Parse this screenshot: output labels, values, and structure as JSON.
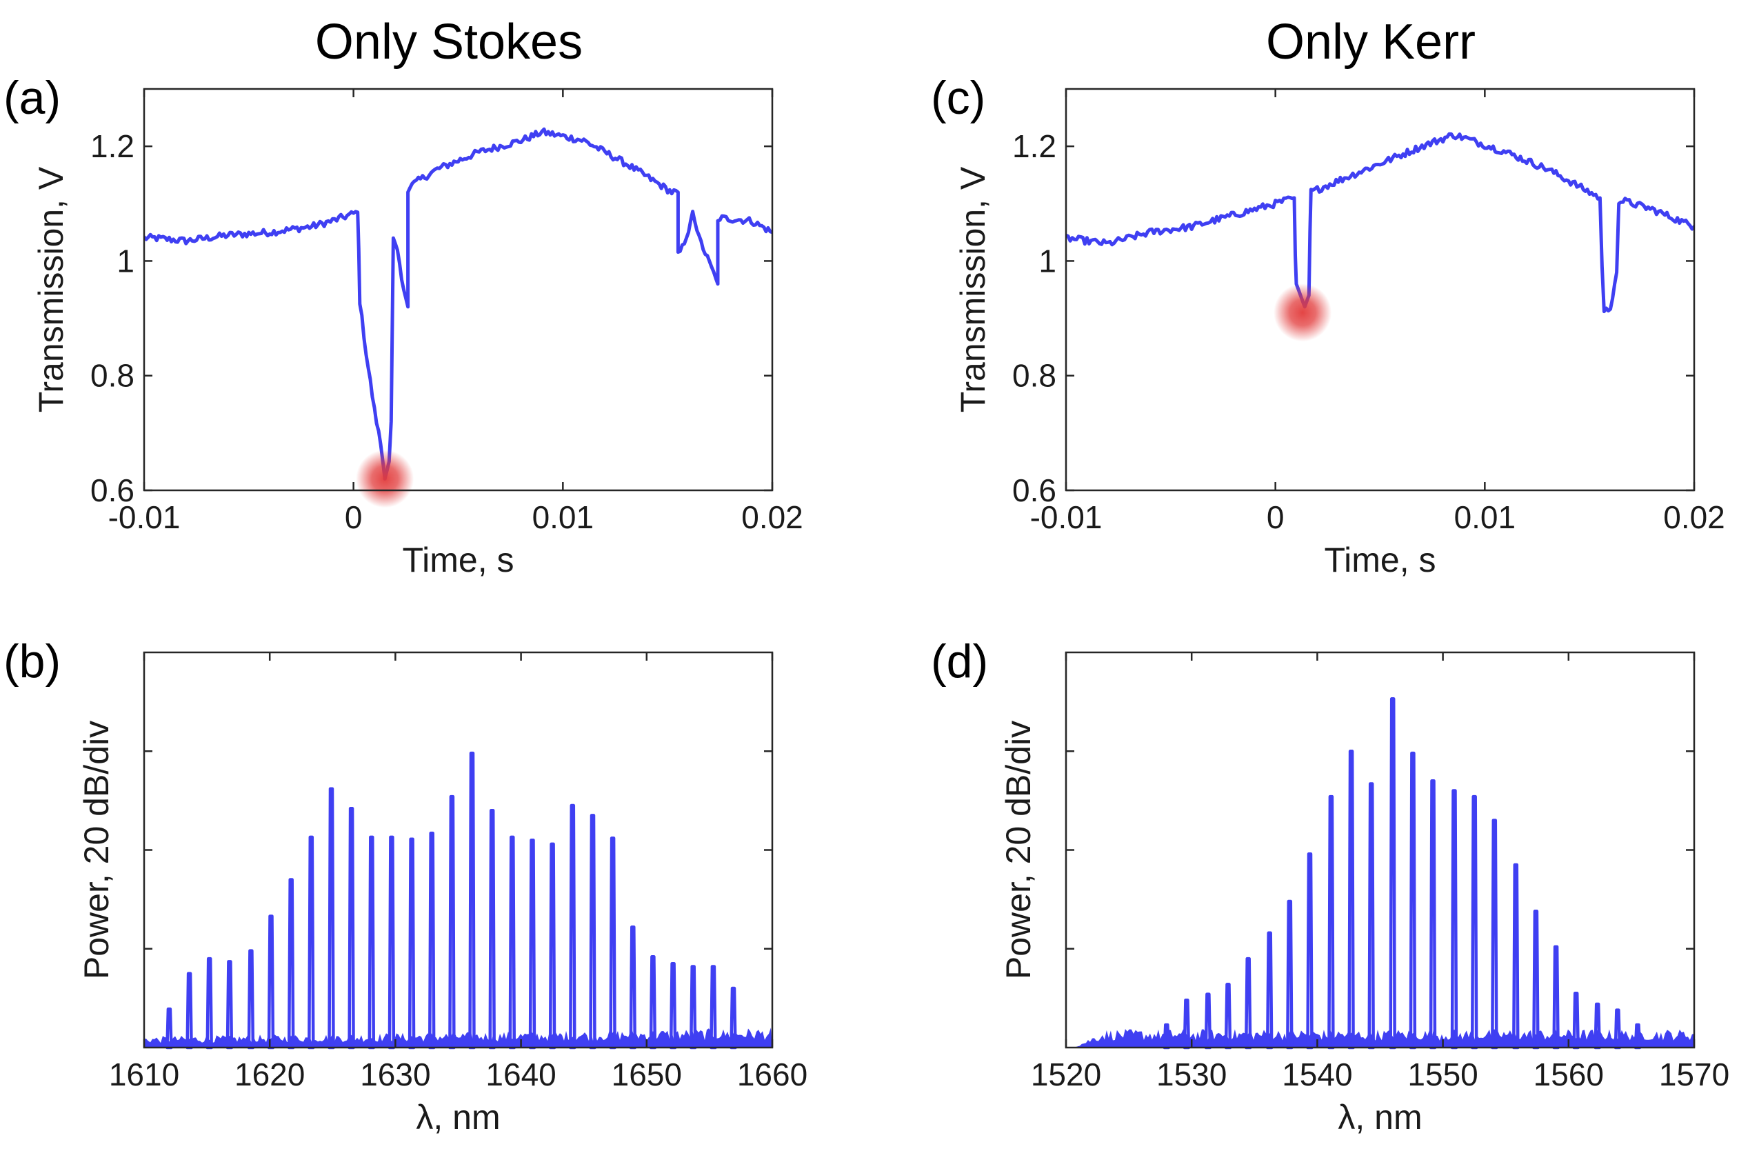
{
  "titles": {
    "left": "Only Stokes",
    "right": "Only Kerr"
  },
  "colors": {
    "trace": "#3f3ff2",
    "highlight": "#e23b3b"
  },
  "chart_data": [
    {
      "id": "a",
      "label": "(a)",
      "type": "line",
      "xlabel": "Time, s",
      "ylabel": "Transmission, V",
      "xlim": [
        -0.01,
        0.02
      ],
      "ylim": [
        0.6,
        1.3
      ],
      "xticks": [
        -0.01,
        0,
        0.01,
        0.02
      ],
      "xtick_labels": [
        "-0.01",
        "0",
        "0.01",
        "0.02"
      ],
      "yticks": [
        0.6,
        0.8,
        1.0,
        1.2
      ],
      "ytick_labels": [
        "0.6",
        "0.8",
        "1",
        "1.2"
      ],
      "grid": false,
      "series": [
        {
          "x": [
            -0.01,
            -0.0095,
            -0.008,
            -0.006,
            -0.004,
            -0.002,
            -0.001,
            0.0002,
            0.00025,
            0.0003,
            0.0006,
            0.001,
            0.0013,
            0.0015,
            0.0017,
            0.0018,
            0.0019,
            0.0021,
            0.0024,
            0.0026,
            0.0026,
            0.0027,
            0.0031,
            0.004,
            0.006,
            0.008,
            0.0087,
            0.009,
            0.011,
            0.013,
            0.0152,
            0.0155,
            0.0155,
            0.0158,
            0.016,
            0.0162,
            0.0165,
            0.0173,
            0.0174,
            0.0174,
            0.0175,
            0.019,
            0.02
          ],
          "y": [
            1.04,
            1.04,
            1.035,
            1.045,
            1.05,
            1.06,
            1.07,
            1.085,
            1.02,
            0.93,
            0.84,
            0.74,
            0.68,
            0.62,
            0.65,
            0.72,
            1.04,
            1.02,
            0.95,
            0.92,
            1.12,
            1.13,
            1.14,
            1.16,
            1.19,
            1.21,
            1.22,
            1.225,
            1.21,
            1.17,
            1.12,
            1.12,
            1.01,
            1.03,
            1.05,
            1.09,
            1.04,
            0.97,
            0.96,
            1.07,
            1.075,
            1.07,
            1.05
          ]
        }
      ],
      "annotations": [
        {
          "type": "highlight",
          "x": 0.0015,
          "y": 0.62
        }
      ]
    },
    {
      "id": "b",
      "label": "(b)",
      "type": "bar",
      "xlabel": "λ, nm",
      "ylabel": "Power, 20 dB/div",
      "xlim": [
        1610,
        1660
      ],
      "xticks": [
        1610,
        1620,
        1630,
        1640,
        1650,
        1660
      ],
      "xtick_labels": [
        "1610",
        "1620",
        "1630",
        "1640",
        "1650",
        "1660"
      ],
      "yticks_count": 4,
      "ylim_div": [
        0,
        4
      ],
      "noise_floor_div": 0.1,
      "grid": false,
      "lines_x": [
        1612.0,
        1613.6,
        1615.2,
        1616.8,
        1618.5,
        1620.1,
        1621.7,
        1623.3,
        1624.9,
        1626.5,
        1628.1,
        1629.7,
        1631.3,
        1632.9,
        1634.5,
        1636.1,
        1637.7,
        1639.3,
        1640.9,
        1642.5,
        1644.1,
        1645.7,
        1647.3,
        1648.9,
        1650.5,
        1652.1,
        1653.7,
        1655.3,
        1656.9
      ],
      "lines_div": [
        0.39,
        0.75,
        0.9,
        0.87,
        0.98,
        1.33,
        1.7,
        2.13,
        2.62,
        2.42,
        2.13,
        2.13,
        2.11,
        2.17,
        2.54,
        2.98,
        2.4,
        2.13,
        2.1,
        2.06,
        2.45,
        2.35,
        2.12,
        1.22,
        0.92,
        0.85,
        0.82,
        0.82,
        0.6
      ]
    },
    {
      "id": "c",
      "label": "(c)",
      "type": "line",
      "xlabel": "Time, s",
      "ylabel": "Transmission, V",
      "xlim": [
        -0.01,
        0.02
      ],
      "ylim": [
        0.6,
        1.3
      ],
      "xticks": [
        -0.01,
        0,
        0.01,
        0.02
      ],
      "xtick_labels": [
        "-0.01",
        "0",
        "0.01",
        "0.02"
      ],
      "yticks": [
        0.6,
        0.8,
        1.0,
        1.2
      ],
      "ytick_labels": [
        "0.6",
        "0.8",
        "1",
        "1.2"
      ],
      "grid": false,
      "series": [
        {
          "x": [
            -0.01,
            -0.008,
            -0.006,
            -0.004,
            -0.002,
            0.0,
            0.0009,
            0.00095,
            0.001,
            0.0012,
            0.0014,
            0.0016,
            0.00165,
            0.0017,
            0.003,
            0.005,
            0.007,
            0.0085,
            0.009,
            0.011,
            0.013,
            0.0155,
            0.0156,
            0.0157,
            0.016,
            0.0163,
            0.0164,
            0.0166,
            0.018,
            0.02
          ],
          "y": [
            1.04,
            1.03,
            1.05,
            1.06,
            1.08,
            1.1,
            1.11,
            1.01,
            0.96,
            0.94,
            0.92,
            0.94,
            1.05,
            1.12,
            1.14,
            1.17,
            1.2,
            1.22,
            1.215,
            1.19,
            1.16,
            1.11,
            0.99,
            0.91,
            0.92,
            0.98,
            1.1,
            1.105,
            1.09,
            1.06
          ]
        }
      ],
      "annotations": [
        {
          "type": "highlight",
          "x": 0.0013,
          "y": 0.91
        }
      ]
    },
    {
      "id": "d",
      "label": "(d)",
      "type": "bar",
      "xlabel": "λ, nm",
      "ylabel": "Power, 20 dB/div",
      "xlim": [
        1520,
        1570
      ],
      "xticks": [
        1520,
        1530,
        1540,
        1550,
        1560,
        1570
      ],
      "xtick_labels": [
        "1520",
        "1530",
        "1540",
        "1550",
        "1560",
        "1570"
      ],
      "yticks_count": 4,
      "ylim_div": [
        0,
        4
      ],
      "noise_floor_div": 0.13,
      "grid": false,
      "lines_x": [
        1528.0,
        1529.6,
        1531.3,
        1532.9,
        1534.5,
        1536.2,
        1537.8,
        1539.4,
        1541.1,
        1542.7,
        1544.3,
        1546.0,
        1547.6,
        1549.2,
        1550.9,
        1552.5,
        1554.1,
        1555.8,
        1557.4,
        1559.0,
        1560.6,
        1562.3,
        1563.9,
        1565.5
      ],
      "lines_div": [
        0.23,
        0.48,
        0.54,
        0.64,
        0.9,
        1.16,
        1.48,
        1.96,
        2.54,
        3.0,
        2.67,
        3.53,
        2.98,
        2.7,
        2.6,
        2.54,
        2.3,
        1.85,
        1.38,
        1.02,
        0.55,
        0.44,
        0.38,
        0.23
      ]
    }
  ]
}
